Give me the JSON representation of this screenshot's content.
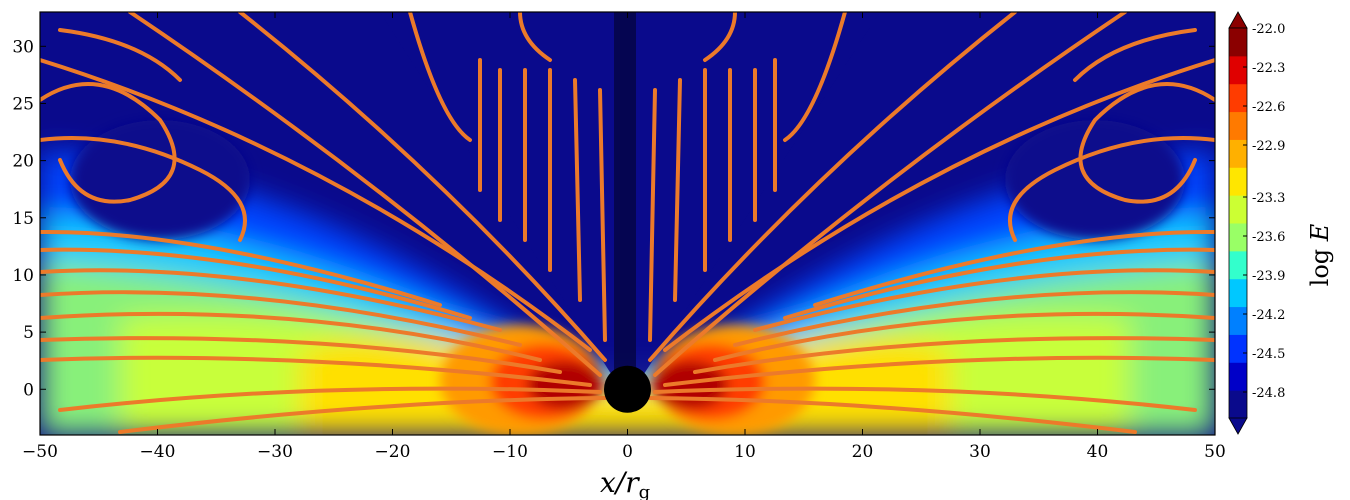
{
  "chart_data": {
    "type": "heatmap",
    "title": "",
    "xlabel": "x/r_g",
    "xlabel_main": "x/r",
    "xlabel_sub": "g",
    "ylabel": "",
    "xlim": [
      -50,
      50
    ],
    "ylim": [
      -4,
      33
    ],
    "x_ticks": [
      -50,
      -40,
      -30,
      -20,
      -10,
      0,
      10,
      20,
      30,
      40,
      50
    ],
    "x_tick_labels": [
      "−50",
      "−40",
      "−30",
      "−20",
      "−10",
      "0",
      "10",
      "20",
      "30",
      "40",
      "50"
    ],
    "y_ticks": [
      0,
      5,
      10,
      15,
      20,
      25,
      30
    ],
    "y_tick_labels": [
      "0",
      "5",
      "10",
      "15",
      "20",
      "25",
      "30"
    ],
    "colorbar": {
      "label": "log Ė",
      "label_main": "log",
      "label_var": "E",
      "range": [
        -25.0,
        -22.0
      ],
      "levels": [
        -22.0,
        -22.3,
        -22.6,
        -22.9,
        -23.3,
        -23.6,
        -23.9,
        -24.2,
        -24.5,
        -24.8
      ],
      "level_labels": [
        "-22.0",
        "-22.3",
        "-22.6",
        "-22.9",
        "-23.3",
        "-23.6",
        "-23.9",
        "-24.2",
        "-24.5",
        "-24.8"
      ],
      "extend": "both",
      "colors": [
        "#0a0a8c",
        "#0000c8",
        "#0033ff",
        "#0080ff",
        "#00c8ff",
        "#33ffcc",
        "#99ff66",
        "#ccff33",
        "#ffe600",
        "#ffb000",
        "#ff7a00",
        "#ff3c00",
        "#e00000",
        "#8b0000"
      ]
    },
    "overlay": {
      "type": "streamlines",
      "color": "#ec7a2a"
    },
    "central_object": {
      "type": "black-hole",
      "x": 0,
      "y": 0,
      "radius": 2,
      "color": "#000000"
    },
    "grid": false
  }
}
